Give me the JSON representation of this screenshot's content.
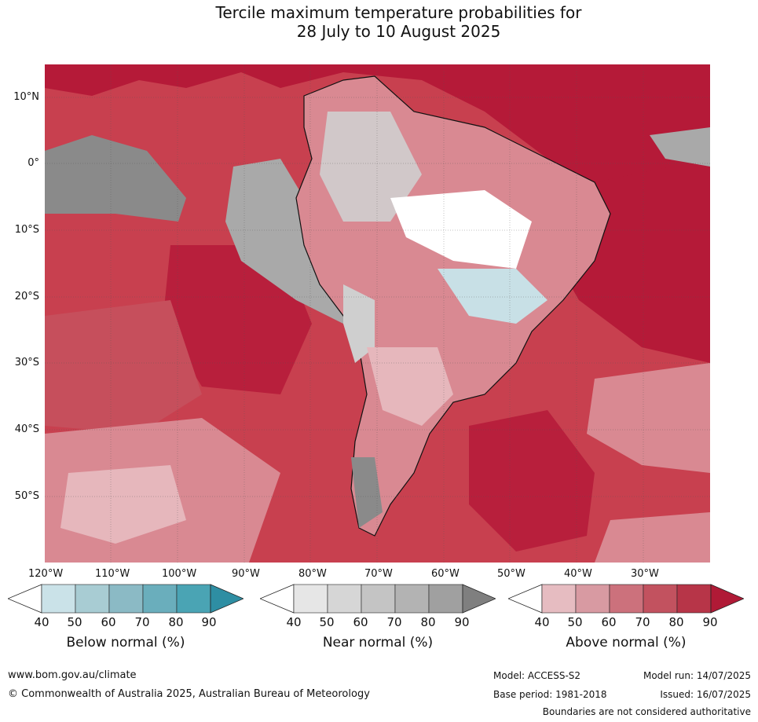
{
  "title": {
    "line1": "Tercile maximum temperature probabilities for",
    "line2": "28 July to 10 August 2025"
  },
  "map": {
    "lat_labels": [
      "10°N",
      "0°",
      "10°S",
      "20°S",
      "30°S",
      "40°S",
      "50°S"
    ],
    "lon_labels": [
      "120°W",
      "110°W",
      "100°W",
      "90°W",
      "80°W",
      "70°W",
      "60°W",
      "50°W",
      "40°W",
      "30°W"
    ],
    "colors": {
      "ocean_base": "#c8404f",
      "deep_red": "#b51a38",
      "mid_red": "#c64f5c",
      "pink": "#d98992",
      "light_pink": "#e6b7bc",
      "grey": "#8a8a8a",
      "light_grey": "#cfcfcf",
      "light_blue": "#c8e0e6"
    }
  },
  "colorbars": [
    {
      "title": "Below normal (%)",
      "ticks": [
        "40",
        "50",
        "60",
        "70",
        "80",
        "90"
      ],
      "colors": [
        "#ffffff",
        "#cae2e8",
        "#a8ccd3",
        "#8bbac5",
        "#6aaebc",
        "#4aa4b4",
        "#2e8ea3"
      ]
    },
    {
      "title": "Near normal (%)",
      "ticks": [
        "40",
        "50",
        "60",
        "70",
        "80",
        "90"
      ],
      "colors": [
        "#ffffff",
        "#e6e6e6",
        "#d6d6d6",
        "#c4c4c4",
        "#b3b3b3",
        "#a0a0a0",
        "#7f7f7f"
      ]
    },
    {
      "title": "Above normal (%)",
      "ticks": [
        "40",
        "50",
        "60",
        "70",
        "80",
        "90"
      ],
      "colors": [
        "#ffffff",
        "#e6bcc1",
        "#d89aa2",
        "#cc717c",
        "#c2525f",
        "#b73548",
        "#b01a36"
      ]
    }
  ],
  "footer": {
    "website": "www.bom.gov.au/climate",
    "copyright": "© Commonwealth of Australia 2025, Australian Bureau of Meteorology",
    "model": "Model: ACCESS-S2",
    "base_period": "Base period: 1981-2018",
    "model_run": "Model run: 14/07/2025",
    "issued": "Issued: 16/07/2025",
    "disclaimer": "Boundaries are not considered authoritative"
  }
}
